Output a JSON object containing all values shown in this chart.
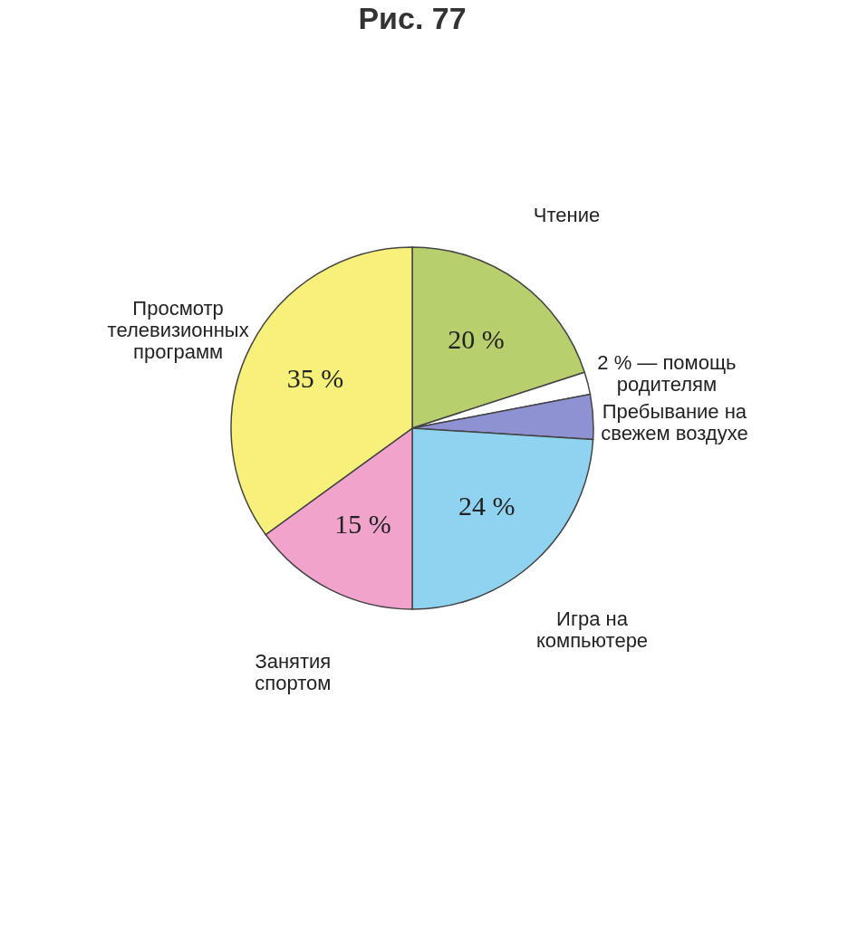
{
  "chart_data": {
    "type": "pie",
    "title": "Рис. 77",
    "categories": [
      "Чтение",
      "2 % — помощь родителям",
      "Пребывание на свежем воздухе",
      "Игра на компьютере",
      "Занятия спортом",
      "Просмотр телевизионных программ"
    ],
    "values": [
      20,
      2,
      4,
      24,
      15,
      35
    ],
    "value_labels": [
      "20 %",
      null,
      null,
      "24 %",
      "15 %",
      "35 %"
    ],
    "colors": [
      "#b8cf6e",
      "#ffffff",
      "#8f92d2",
      "#8fd3f0",
      "#f2a3cb",
      "#f7f17c"
    ]
  }
}
